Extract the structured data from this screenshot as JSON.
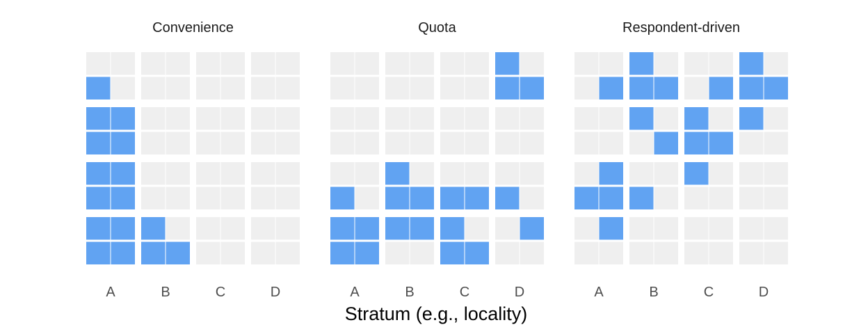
{
  "chart_data": {
    "type": "heatmap",
    "xlabel": "Stratum (e.g., locality)",
    "colors": {
      "sampled": "#61a3f2",
      "unsampled": "#efefef"
    },
    "panels": [
      {
        "title": "Convenience",
        "strata": [
          "A",
          "B",
          "C",
          "D"
        ],
        "grid": [
          [
            0,
            0,
            0,
            0,
            0,
            0,
            0,
            0
          ],
          [
            1,
            0,
            0,
            0,
            0,
            0,
            0,
            0
          ],
          [
            1,
            1,
            0,
            0,
            0,
            0,
            0,
            0
          ],
          [
            1,
            1,
            0,
            0,
            0,
            0,
            0,
            0
          ],
          [
            1,
            1,
            0,
            0,
            0,
            0,
            0,
            0
          ],
          [
            1,
            1,
            0,
            0,
            0,
            0,
            0,
            0
          ],
          [
            1,
            1,
            1,
            0,
            0,
            0,
            0,
            0
          ],
          [
            1,
            1,
            1,
            1,
            0,
            0,
            0,
            0
          ]
        ]
      },
      {
        "title": "Quota",
        "strata": [
          "A",
          "B",
          "C",
          "D"
        ],
        "grid": [
          [
            0,
            0,
            0,
            0,
            0,
            0,
            1,
            0
          ],
          [
            0,
            0,
            0,
            0,
            0,
            0,
            1,
            1
          ],
          [
            0,
            0,
            0,
            0,
            0,
            0,
            0,
            0
          ],
          [
            0,
            0,
            0,
            0,
            0,
            0,
            0,
            0
          ],
          [
            0,
            0,
            1,
            0,
            0,
            0,
            0,
            0
          ],
          [
            1,
            0,
            1,
            1,
            1,
            1,
            1,
            0
          ],
          [
            1,
            1,
            1,
            1,
            1,
            0,
            0,
            1
          ],
          [
            1,
            1,
            0,
            0,
            1,
            1,
            0,
            0
          ]
        ]
      },
      {
        "title": "Respondent-driven",
        "strata": [
          "A",
          "B",
          "C",
          "D"
        ],
        "grid": [
          [
            0,
            0,
            1,
            0,
            0,
            0,
            1,
            0
          ],
          [
            0,
            1,
            1,
            1,
            0,
            1,
            1,
            1
          ],
          [
            0,
            0,
            1,
            0,
            1,
            0,
            1,
            0
          ],
          [
            0,
            0,
            0,
            1,
            1,
            1,
            0,
            0
          ],
          [
            0,
            1,
            0,
            0,
            1,
            0,
            0,
            0
          ],
          [
            1,
            1,
            1,
            0,
            0,
            0,
            0,
            0
          ],
          [
            0,
            1,
            0,
            0,
            0,
            0,
            0,
            0
          ],
          [
            0,
            0,
            0,
            0,
            0,
            0,
            0,
            0
          ]
        ]
      }
    ]
  }
}
